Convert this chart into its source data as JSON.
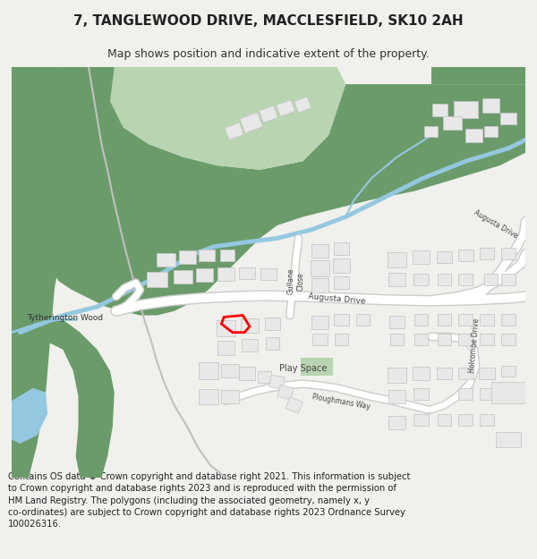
{
  "title": "7, TANGLEWOOD DRIVE, MACCLESFIELD, SK10 2AH",
  "subtitle": "Map shows position and indicative extent of the property.",
  "footer": "Contains OS data © Crown copyright and database right 2021. This information is subject to Crown copyright and database rights 2023 and is reproduced with the permission of HM Land Registry. The polygons (including the associated geometry, namely x, y co-ordinates) are subject to Crown copyright and database rights 2023 Ordnance Survey 100026316.",
  "bg_color": "#f0f0ec",
  "map_bg": "#f8f8f5",
  "green_dark": "#6b9b6b",
  "green_light": "#b8d4b0",
  "road_color": "#ffffff",
  "building_fill": "#e8e8e8",
  "building_outline": "#c8c8c8",
  "water_color": "#94c8e0",
  "property_color": "#ff0000",
  "text_color": "#444444",
  "title_fontsize": 11,
  "subtitle_fontsize": 9,
  "footer_fontsize": 7.2
}
